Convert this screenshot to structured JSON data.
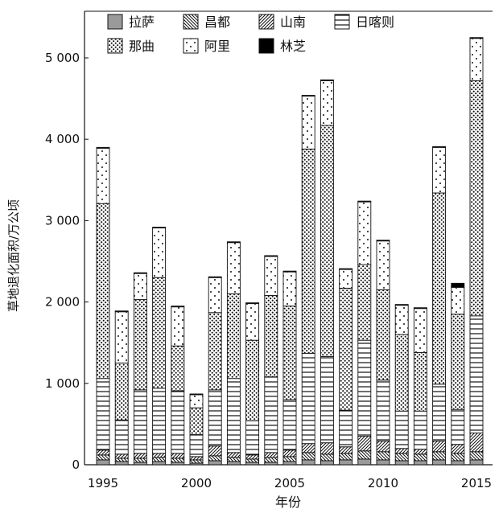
{
  "chart_data": {
    "type": "bar",
    "stacked": true,
    "title": "",
    "xlabel": "年份",
    "ylabel": "草地退化面积/万公顷",
    "ylim": [
      0,
      5400
    ],
    "yticks": [
      0,
      1000,
      2000,
      3000,
      4000,
      5000
    ],
    "ytick_labels": [
      "0",
      "1 000",
      "2 000",
      "3 000",
      "4 000",
      "5 000"
    ],
    "xtick_labels": [
      "1995",
      "2000",
      "2005",
      "2010",
      "2015"
    ],
    "xtick_years": [
      1995,
      2000,
      2005,
      2010,
      2015
    ],
    "categories": [
      1995,
      1996,
      1997,
      1998,
      1999,
      2000,
      2001,
      2002,
      2003,
      2004,
      2005,
      2006,
      2007,
      2008,
      2009,
      2010,
      2011,
      2012,
      2013,
      2014,
      2015
    ],
    "legend_position": "top",
    "series": [
      {
        "name": "拉萨",
        "pattern": "gray",
        "values": [
          60,
          40,
          30,
          40,
          30,
          20,
          50,
          40,
          30,
          30,
          40,
          60,
          50,
          60,
          70,
          60,
          50,
          50,
          60,
          50,
          60
        ]
      },
      {
        "name": "昌都",
        "pattern": "backslash",
        "values": [
          60,
          40,
          50,
          50,
          50,
          40,
          60,
          50,
          40,
          60,
          60,
          90,
          80,
          80,
          100,
          100,
          90,
          80,
          100,
          90,
          100
        ]
      },
      {
        "name": "山南",
        "pattern": "slash",
        "values": [
          60,
          50,
          60,
          50,
          60,
          40,
          120,
          60,
          50,
          60,
          80,
          110,
          140,
          80,
          180,
          130,
          60,
          60,
          130,
          110,
          230
        ]
      },
      {
        "name": "日喀则",
        "pattern": "hlines",
        "values": [
          880,
          420,
          780,
          800,
          770,
          270,
          690,
          910,
          420,
          930,
          620,
          1110,
          1060,
          450,
          1180,
          750,
          460,
          470,
          700,
          430,
          1440
        ]
      },
      {
        "name": "那曲",
        "pattern": "dense-dots",
        "values": [
          2150,
          700,
          1110,
          1360,
          550,
          330,
          950,
          1040,
          990,
          1000,
          1150,
          2510,
          2840,
          1500,
          930,
          1110,
          940,
          720,
          2350,
          1170,
          2890
        ]
      },
      {
        "name": "阿里",
        "pattern": "sparse-dots",
        "values": [
          680,
          630,
          320,
          610,
          480,
          160,
          430,
          630,
          450,
          480,
          420,
          650,
          550,
          230,
          770,
          600,
          360,
          540,
          560,
          330,
          520
        ]
      },
      {
        "name": "林芝",
        "pattern": "black",
        "values": [
          10,
          10,
          10,
          10,
          10,
          10,
          10,
          10,
          10,
          10,
          10,
          10,
          10,
          10,
          10,
          10,
          10,
          10,
          10,
          50,
          10
        ]
      }
    ]
  }
}
